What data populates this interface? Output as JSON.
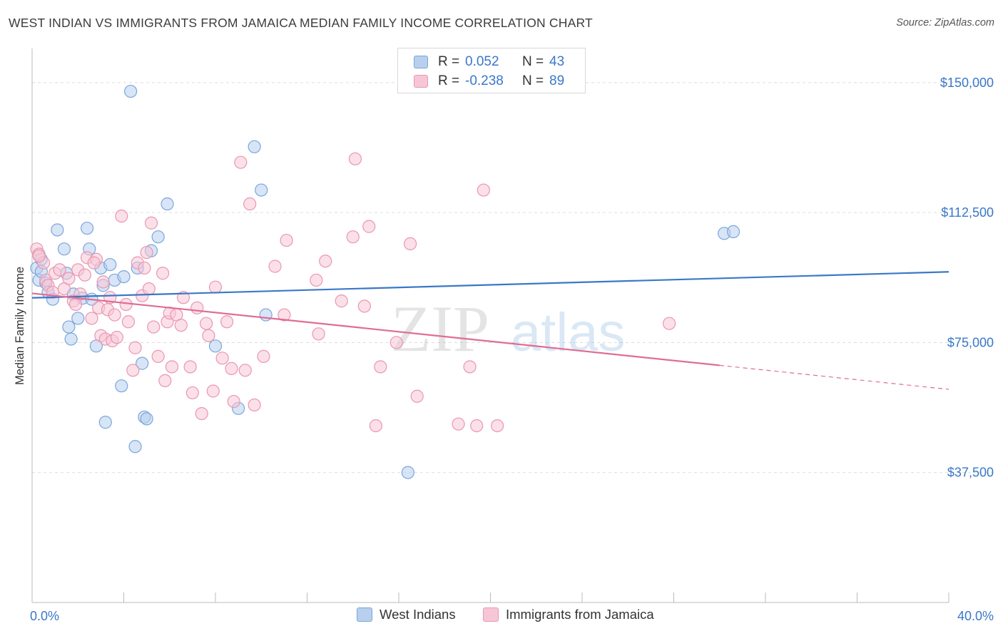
{
  "header": {
    "title": "WEST INDIAN VS IMMIGRANTS FROM JAMAICA MEDIAN FAMILY INCOME CORRELATION CHART",
    "source": "Source: ZipAtlas.com"
  },
  "watermark": {
    "zip": "ZIP",
    "atlas": "atlas"
  },
  "colors": {
    "blue": "#3a78c8",
    "blue_fill": "#b8d0ee",
    "blue_stroke": "#7aa6dc",
    "pink": "#e06c93",
    "pink_fill": "#f7c6d6",
    "pink_stroke": "#ea96b2",
    "grid": "#dddddd",
    "axis": "#bbbbbb"
  },
  "legend": {
    "rows": [
      {
        "r_label": "R =",
        "r_value": "0.052",
        "n_label": "N =",
        "n_value": "43"
      },
      {
        "r_label": "R =",
        "r_value": "-0.238",
        "n_label": "N =",
        "n_value": "89"
      }
    ]
  },
  "bottom_legend": {
    "series1": "West Indians",
    "series2": "Immigrants from Jamaica"
  },
  "chart_data": {
    "type": "scatter",
    "ylabel": "Median Family Income",
    "xlabel": "",
    "xlim": [
      0,
      40
    ],
    "ylim": [
      0,
      158000
    ],
    "x_tick_labels": [
      "0.0%",
      "40.0%"
    ],
    "y_ticks": [
      37500,
      75000,
      112500,
      150000
    ],
    "y_tick_labels": [
      "$37,500",
      "$75,000",
      "$112,500",
      "$150,000"
    ],
    "grid": "horizontal dashed",
    "series": [
      {
        "name": "West Indians",
        "r": 0.052,
        "n": 43,
        "trend": {
          "x0": 0,
          "y0": 87900,
          "x1": 40,
          "y1": 95400,
          "solid_to": 40
        },
        "points": [
          [
            0.2,
            96500
          ],
          [
            0.3,
            93000
          ],
          [
            0.4,
            99000
          ],
          [
            0.6,
            92200
          ],
          [
            0.7,
            89500
          ],
          [
            0.9,
            87500
          ],
          [
            1.1,
            107500
          ],
          [
            1.4,
            102000
          ],
          [
            1.6,
            79500
          ],
          [
            1.7,
            76000
          ],
          [
            1.8,
            89000
          ],
          [
            2.0,
            82000
          ],
          [
            2.2,
            87800
          ],
          [
            2.4,
            108000
          ],
          [
            2.5,
            102000
          ],
          [
            2.6,
            87500
          ],
          [
            2.8,
            74000
          ],
          [
            3.0,
            96500
          ],
          [
            3.1,
            91500
          ],
          [
            3.2,
            52000
          ],
          [
            3.4,
            97500
          ],
          [
            3.6,
            93000
          ],
          [
            3.9,
            62500
          ],
          [
            4.0,
            94000
          ],
          [
            4.3,
            147500
          ],
          [
            4.5,
            45000
          ],
          [
            4.6,
            96500
          ],
          [
            4.8,
            69000
          ],
          [
            4.9,
            53500
          ],
          [
            5.0,
            53000
          ],
          [
            5.2,
            101500
          ],
          [
            5.5,
            105500
          ],
          [
            5.9,
            115000
          ],
          [
            8.0,
            74000
          ],
          [
            9.0,
            56000
          ],
          [
            9.7,
            131500
          ],
          [
            10.0,
            119000
          ],
          [
            10.2,
            83000
          ],
          [
            16.4,
            37500
          ],
          [
            30.2,
            106500
          ],
          [
            30.6,
            107000
          ],
          [
            0.4,
            95500
          ],
          [
            1.5,
            95000
          ]
        ]
      },
      {
        "name": "Immigrants from Jamaica",
        "r": -0.238,
        "n": 89,
        "trend": {
          "x0": 0,
          "y0": 89200,
          "x1": 40,
          "y1": 61500,
          "solid_to": 30
        },
        "points": [
          [
            0.2,
            102000
          ],
          [
            0.3,
            100500
          ],
          [
            0.5,
            98000
          ],
          [
            0.6,
            93000
          ],
          [
            0.7,
            91500
          ],
          [
            0.9,
            89500
          ],
          [
            1.0,
            95000
          ],
          [
            1.2,
            96000
          ],
          [
            1.4,
            90500
          ],
          [
            1.6,
            93500
          ],
          [
            1.8,
            87000
          ],
          [
            1.9,
            86000
          ],
          [
            2.0,
            96000
          ],
          [
            2.1,
            89000
          ],
          [
            2.3,
            94500
          ],
          [
            2.4,
            99500
          ],
          [
            2.6,
            82000
          ],
          [
            2.8,
            99000
          ],
          [
            2.9,
            85000
          ],
          [
            3.0,
            77000
          ],
          [
            3.1,
            92500
          ],
          [
            3.2,
            76000
          ],
          [
            3.3,
            84500
          ],
          [
            3.4,
            88000
          ],
          [
            3.5,
            75500
          ],
          [
            3.6,
            83000
          ],
          [
            3.7,
            76500
          ],
          [
            3.9,
            111500
          ],
          [
            4.1,
            86000
          ],
          [
            4.2,
            81000
          ],
          [
            4.4,
            67000
          ],
          [
            4.5,
            73500
          ],
          [
            4.6,
            98000
          ],
          [
            4.8,
            88500
          ],
          [
            4.9,
            96500
          ],
          [
            5.1,
            90500
          ],
          [
            5.2,
            109500
          ],
          [
            5.3,
            79500
          ],
          [
            5.5,
            71000
          ],
          [
            5.7,
            95000
          ],
          [
            5.8,
            64000
          ],
          [
            5.9,
            81000
          ],
          [
            6.0,
            83500
          ],
          [
            6.1,
            68000
          ],
          [
            6.3,
            83000
          ],
          [
            6.5,
            80000
          ],
          [
            6.6,
            88000
          ],
          [
            6.9,
            68000
          ],
          [
            7.0,
            60500
          ],
          [
            7.2,
            85000
          ],
          [
            7.4,
            54500
          ],
          [
            7.6,
            80500
          ],
          [
            7.7,
            77000
          ],
          [
            7.9,
            61000
          ],
          [
            8.0,
            91000
          ],
          [
            8.3,
            70500
          ],
          [
            8.5,
            81000
          ],
          [
            8.7,
            67500
          ],
          [
            8.8,
            58000
          ],
          [
            9.1,
            127000
          ],
          [
            9.3,
            67000
          ],
          [
            9.5,
            115000
          ],
          [
            9.7,
            57000
          ],
          [
            10.1,
            71000
          ],
          [
            10.6,
            97000
          ],
          [
            11.0,
            83000
          ],
          [
            11.1,
            104500
          ],
          [
            12.4,
            93000
          ],
          [
            12.5,
            77500
          ],
          [
            12.8,
            98500
          ],
          [
            13.5,
            87000
          ],
          [
            14.0,
            105500
          ],
          [
            14.5,
            85500
          ],
          [
            14.7,
            108500
          ],
          [
            15.0,
            51000
          ],
          [
            15.2,
            68000
          ],
          [
            15.9,
            75000
          ],
          [
            16.5,
            103500
          ],
          [
            16.8,
            59500
          ],
          [
            18.6,
            51500
          ],
          [
            19.1,
            68000
          ],
          [
            19.4,
            51000
          ],
          [
            19.7,
            119000
          ],
          [
            20.3,
            51000
          ],
          [
            27.8,
            80500
          ],
          [
            14.1,
            128000
          ],
          [
            0.3,
            100000
          ],
          [
            5.0,
            101000
          ],
          [
            2.7,
            98000
          ]
        ]
      }
    ]
  }
}
